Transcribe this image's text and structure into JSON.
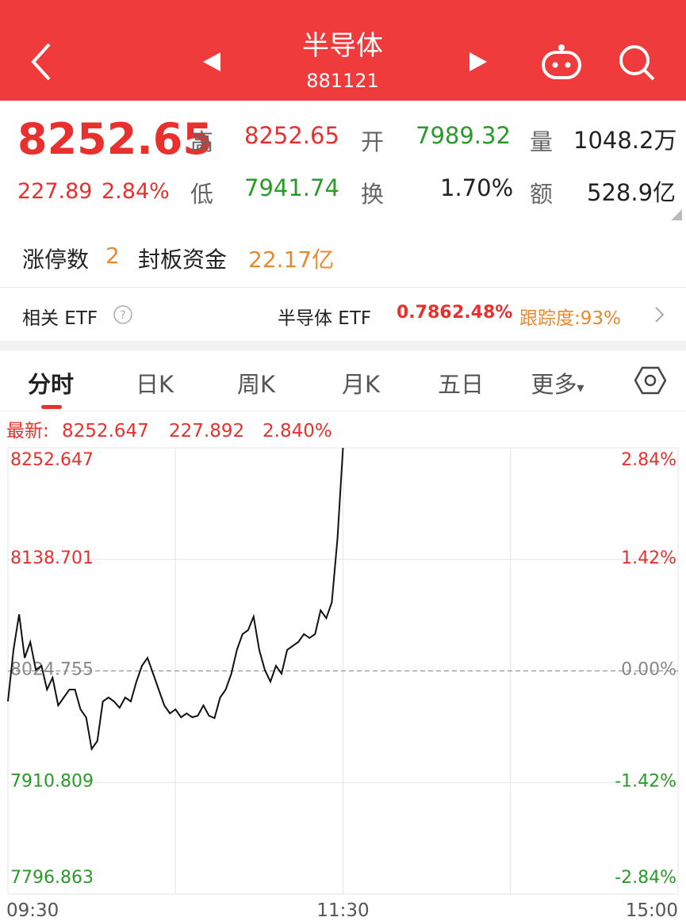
{
  "header": {
    "title": "半导体",
    "code": "881121"
  },
  "quote": {
    "price": "8252.65",
    "change": "227.89",
    "change_pct": "2.84%",
    "high_label": "高",
    "high": "8252.65",
    "open_label": "开",
    "open": "7989.32",
    "volume_label": "量",
    "volume": "1048.2万",
    "low_label": "低",
    "low": "7941.74",
    "turnover_label": "换",
    "turnover": "1.70%",
    "amount_label": "额",
    "amount": "528.9亿"
  },
  "limit": {
    "label": "涨停数",
    "count": "2",
    "seal_label": "封板资金",
    "seal": "22.17亿"
  },
  "etf": {
    "label": "相关 ETF",
    "name": "半导体 ETF",
    "price": "0.786",
    "change": "2.48%",
    "tracking": "跟踪度:93%"
  },
  "tabs": [
    "分时",
    "日K",
    "周K",
    "月K",
    "五日",
    "更多"
  ],
  "chart_data": {
    "type": "line",
    "latest_label": "最新:",
    "latest_value": "8252.647",
    "latest_change": "227.892",
    "latest_pct": "2.840%",
    "x": [
      0,
      2,
      4,
      6,
      8,
      10,
      12,
      14,
      16,
      18,
      20,
      22,
      24,
      26,
      28,
      30,
      32,
      34,
      36,
      38,
      40,
      42,
      44,
      46,
      48,
      50,
      52,
      54,
      56,
      58,
      60,
      62,
      64,
      66,
      68,
      70,
      72,
      74,
      76,
      78,
      80,
      82,
      84,
      86,
      88,
      90,
      92,
      94,
      96,
      98,
      100,
      102,
      104,
      106,
      108,
      110,
      112,
      114,
      116,
      118,
      120
    ],
    "values": [
      7993.6,
      8046.2,
      8082.6,
      8038.1,
      8054.3,
      8025.9,
      8030,
      8005.7,
      8017.9,
      7989.5,
      7997.6,
      8005.7,
      8005.7,
      7985.5,
      7977.4,
      7945,
      7953.1,
      7993.6,
      7997.6,
      7993.6,
      7987.1,
      7997.6,
      7993.6,
      8013.8,
      8030,
      8038.1,
      8021.9,
      8005.7,
      7989.5,
      7981.4,
      7985.5,
      7977.4,
      7981.4,
      7977.4,
      7979,
      7989.5,
      7979,
      7976.6,
      7997.6,
      8005.7,
      8021.9,
      8046.2,
      8062.4,
      8066.4,
      8080.2,
      8046.2,
      8025.9,
      8013.8,
      8030,
      8021.9,
      8046.2,
      8050.3,
      8054.3,
      8062.4,
      8058.4,
      8062.4,
      8086.7,
      8078.6,
      8094.8,
      8159.6,
      8252.647
    ],
    "color": "#111111",
    "xlim": [
      0,
      240
    ],
    "xticks": [
      {
        "value": 0,
        "label": "09:30"
      },
      {
        "value": 120,
        "label": "11:30"
      },
      {
        "value": 240,
        "label": "15:00"
      }
    ],
    "ylim": [
      7796.863,
      8252.647
    ],
    "yticks": [
      8252.647,
      8138.701,
      8024.755,
      7910.809,
      7796.863
    ],
    "y2lim": [
      -2.84,
      2.84
    ],
    "y2ticks": [
      {
        "value": 2.84,
        "label": "2.84%"
      },
      {
        "value": 1.42,
        "label": "1.42%"
      },
      {
        "value": 0,
        "label": "0.00%"
      },
      {
        "value": -1.42,
        "label": "-1.42%"
      },
      {
        "value": -2.84,
        "label": "-2.84%"
      }
    ],
    "grid": true
  }
}
